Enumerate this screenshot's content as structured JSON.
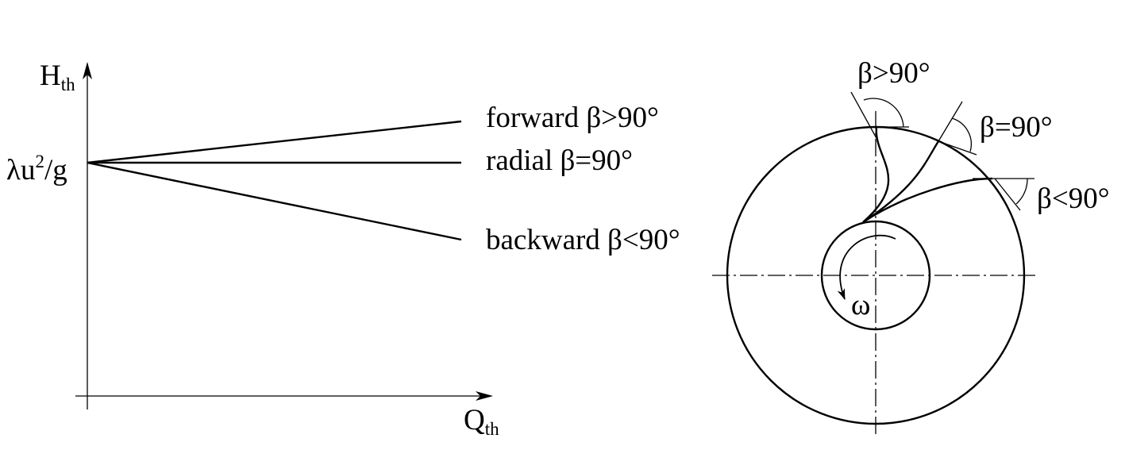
{
  "graph": {
    "y_axis_label": "H",
    "y_axis_sub": "th",
    "x_axis_label": "Q",
    "x_axis_sub": "th",
    "intercept_label": {
      "lambda": "λu",
      "exp": "2",
      "tail": "/g"
    },
    "lines": [
      {
        "label": "forward β>90°"
      },
      {
        "label": "radial β=90°"
      },
      {
        "label": "backward β<90°"
      }
    ]
  },
  "impeller": {
    "blade_labels": [
      "β>90°",
      "β=90°",
      "β<90°"
    ],
    "rotation_label": "ω"
  }
}
